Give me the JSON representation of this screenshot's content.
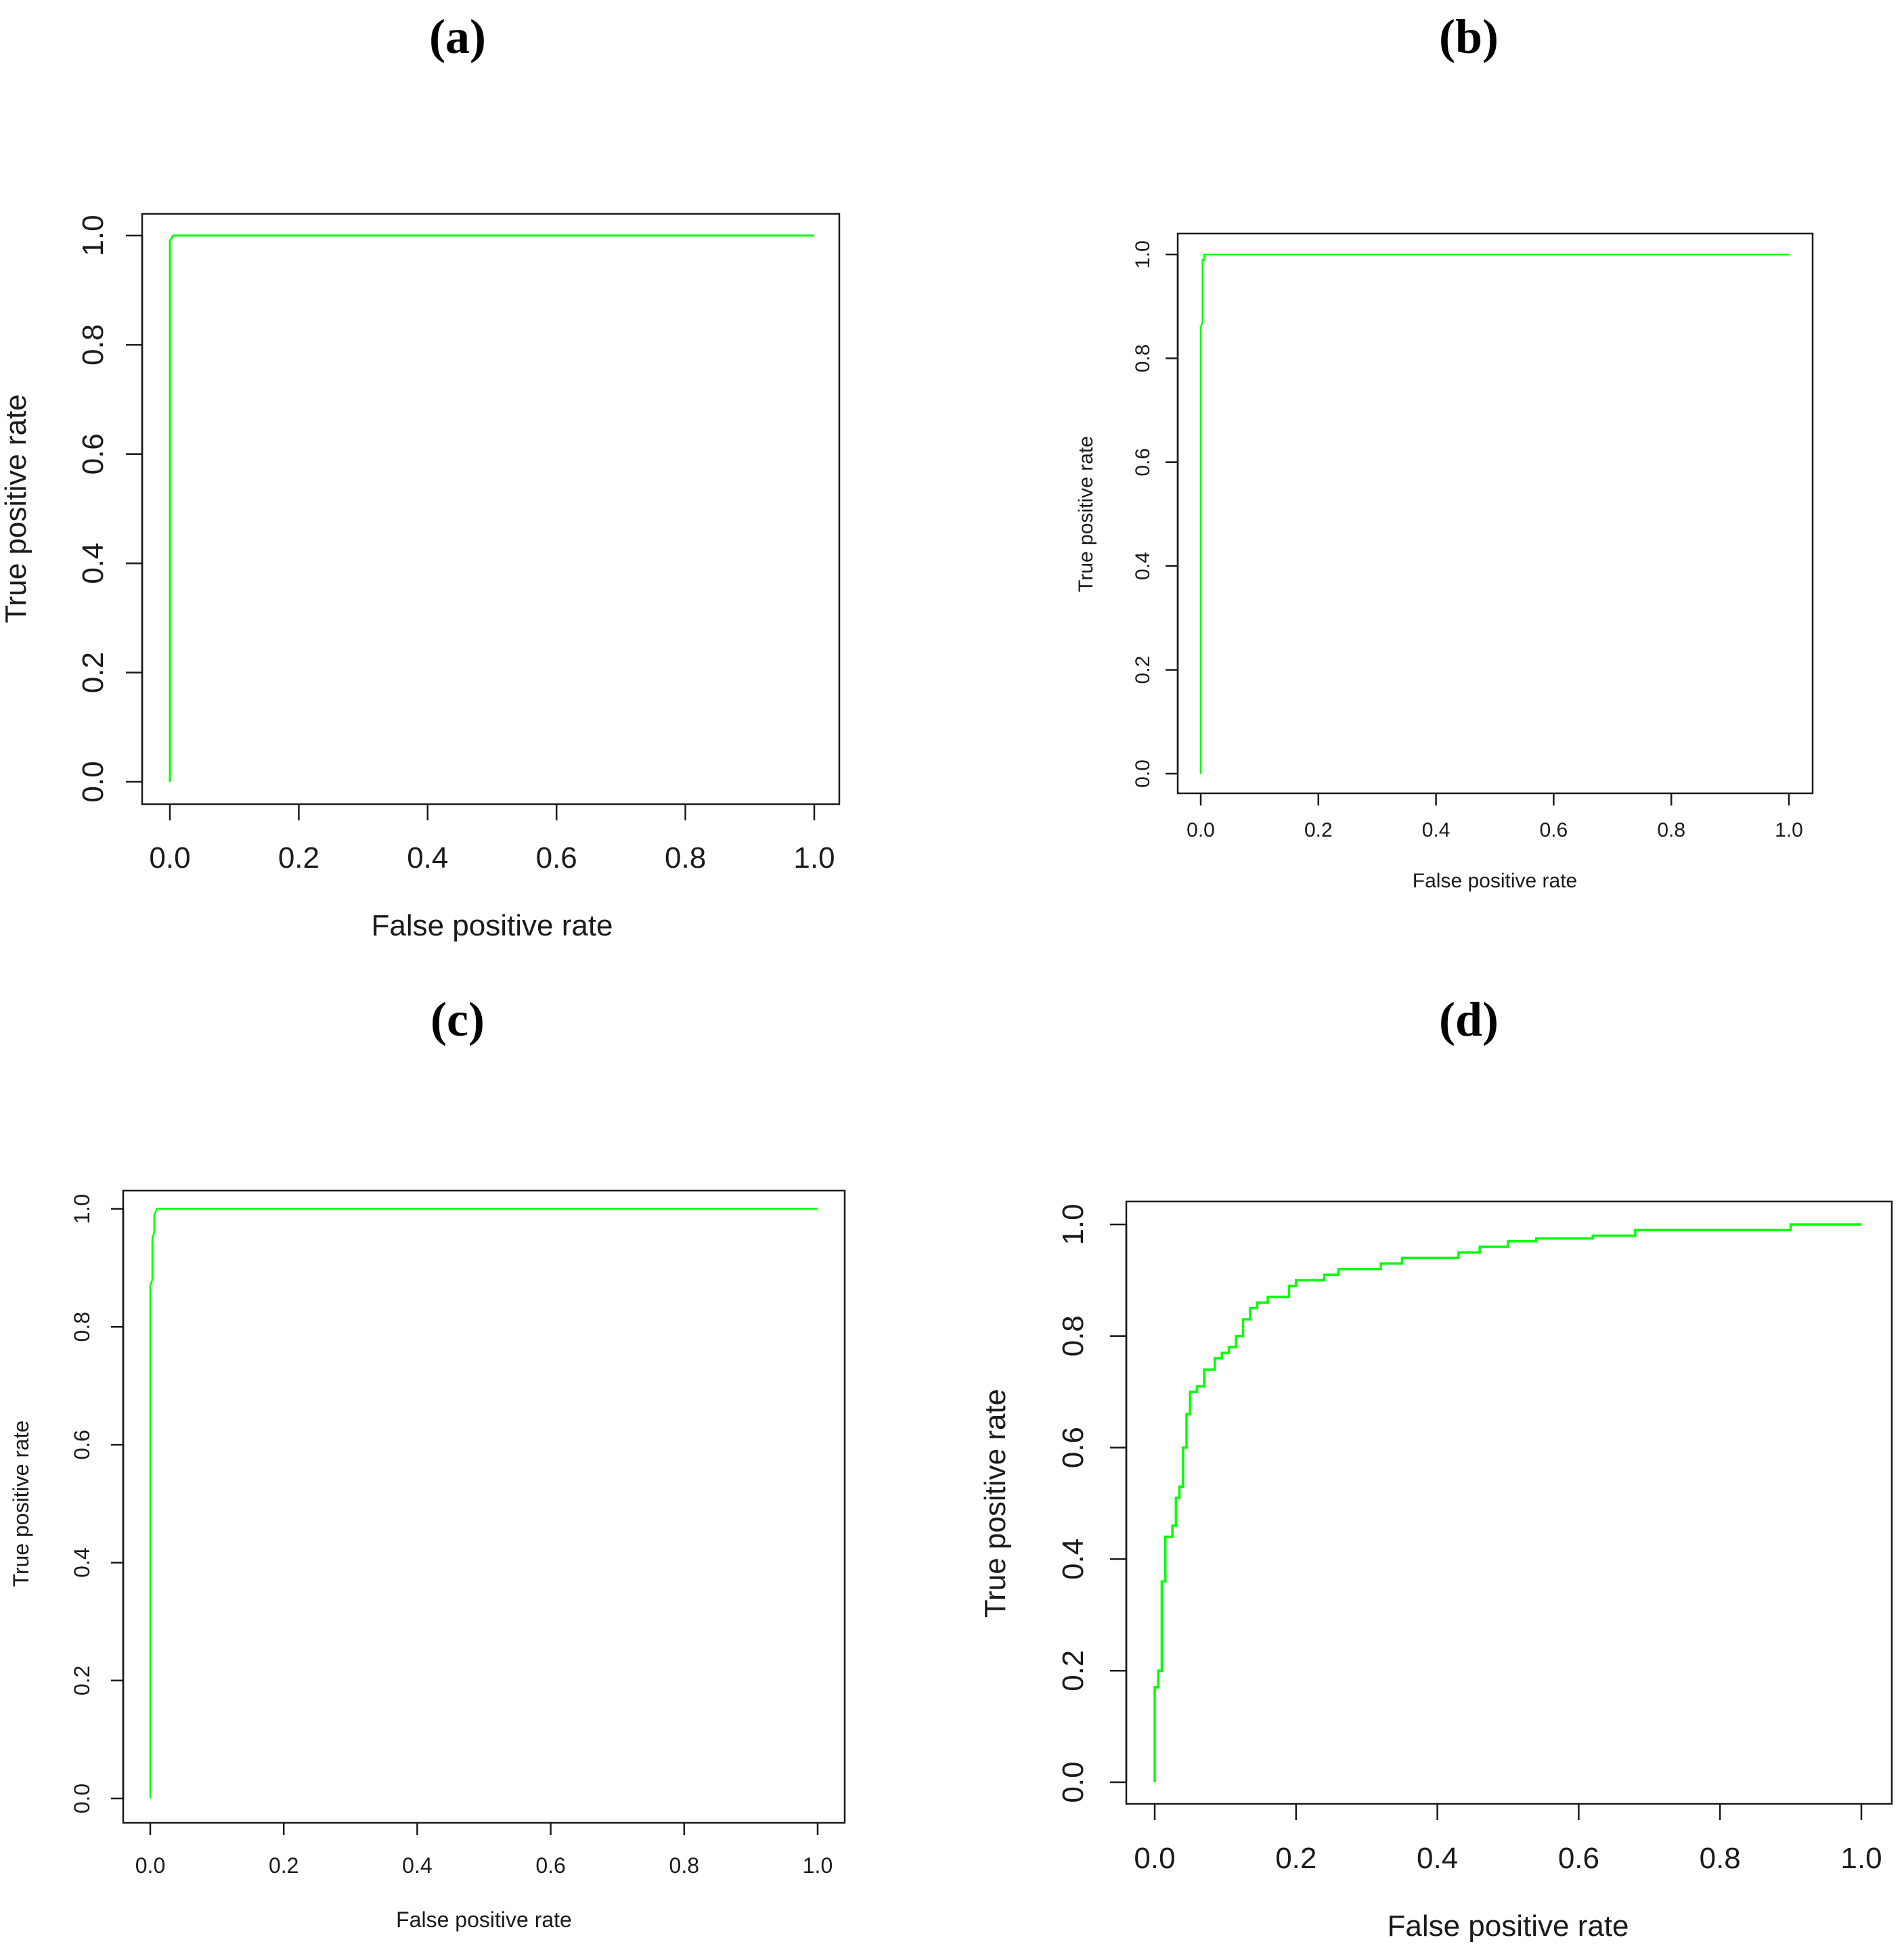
{
  "panel_labels": [
    "(a)",
    "(b)",
    "(c)",
    "(d)"
  ],
  "colors": {
    "curve": "#00ff00",
    "axis": "#1a1a1a",
    "background": "#ffffff"
  },
  "chart_data": [
    {
      "type": "line",
      "panel": "(a)",
      "xlabel": "False positive rate",
      "ylabel": "True positive rate",
      "xticks": [
        "0.0",
        "0.2",
        "0.4",
        "0.6",
        "0.8",
        "1.0"
      ],
      "yticks": [
        "0.0",
        "0.2",
        "0.4",
        "0.6",
        "0.8",
        "1.0"
      ],
      "xlim": [
        0,
        1
      ],
      "ylim": [
        0,
        1
      ],
      "grid": false,
      "series": [
        {
          "x": [
            0,
            0,
            0.005,
            1
          ],
          "y": [
            0,
            0.99,
            1.0,
            1.0
          ]
        }
      ]
    },
    {
      "type": "line",
      "panel": "(b)",
      "xlabel": "False positive rate",
      "ylabel": "True positive rate",
      "xticks": [
        "0.0",
        "0.2",
        "0.4",
        "0.6",
        "0.8",
        "1.0"
      ],
      "yticks": [
        "0.0",
        "0.2",
        "0.4",
        "0.6",
        "0.8",
        "1.0"
      ],
      "xlim": [
        0,
        1
      ],
      "ylim": [
        0,
        1
      ],
      "grid": false,
      "series": [
        {
          "x": [
            0,
            0,
            0.003,
            0.003,
            0.006,
            0.006,
            1
          ],
          "y": [
            0,
            0.86,
            0.87,
            0.99,
            0.99,
            1.0,
            1.0
          ]
        }
      ]
    },
    {
      "type": "line",
      "panel": "(c)",
      "xlabel": "False positive rate",
      "ylabel": "True positive rate",
      "xticks": [
        "0.0",
        "0.2",
        "0.4",
        "0.6",
        "0.8",
        "1.0"
      ],
      "yticks": [
        "0.0",
        "0.2",
        "0.4",
        "0.6",
        "0.8",
        "1.0"
      ],
      "xlim": [
        0,
        1
      ],
      "ylim": [
        0,
        1
      ],
      "grid": false,
      "series": [
        {
          "x": [
            0,
            0,
            0.003,
            0.003,
            0.006,
            0.006,
            0.01,
            1
          ],
          "y": [
            0,
            0.87,
            0.88,
            0.95,
            0.96,
            0.99,
            1.0,
            1.0
          ]
        }
      ]
    },
    {
      "type": "line",
      "panel": "(d)",
      "xlabel": "False positive rate",
      "ylabel": "True positive rate",
      "xticks": [
        "0.0",
        "0.2",
        "0.4",
        "0.6",
        "0.8",
        "1.0"
      ],
      "yticks": [
        "0.0",
        "0.2",
        "0.4",
        "0.6",
        "0.8",
        "1.0"
      ],
      "xlim": [
        0,
        1
      ],
      "ylim": [
        0,
        1
      ],
      "grid": false,
      "series": [
        {
          "x": [
            0,
            0,
            0.005,
            0.005,
            0.01,
            0.01,
            0.015,
            0.015,
            0.025,
            0.025,
            0.03,
            0.03,
            0.035,
            0.035,
            0.04,
            0.04,
            0.045,
            0.045,
            0.05,
            0.05,
            0.06,
            0.06,
            0.07,
            0.07,
            0.085,
            0.085,
            0.095,
            0.095,
            0.105,
            0.105,
            0.115,
            0.115,
            0.125,
            0.125,
            0.135,
            0.135,
            0.145,
            0.145,
            0.16,
            0.16,
            0.19,
            0.19,
            0.2,
            0.2,
            0.24,
            0.24,
            0.26,
            0.26,
            0.32,
            0.32,
            0.35,
            0.35,
            0.43,
            0.43,
            0.46,
            0.46,
            0.5,
            0.5,
            0.54,
            0.54,
            0.62,
            0.62,
            0.68,
            0.68,
            0.9,
            0.9,
            1.0
          ],
          "y": [
            0,
            0.17,
            0.17,
            0.2,
            0.2,
            0.36,
            0.36,
            0.44,
            0.44,
            0.46,
            0.46,
            0.51,
            0.51,
            0.53,
            0.53,
            0.6,
            0.6,
            0.66,
            0.66,
            0.7,
            0.7,
            0.71,
            0.71,
            0.74,
            0.74,
            0.76,
            0.76,
            0.77,
            0.77,
            0.78,
            0.78,
            0.8,
            0.8,
            0.83,
            0.83,
            0.85,
            0.85,
            0.86,
            0.86,
            0.87,
            0.87,
            0.89,
            0.89,
            0.9,
            0.9,
            0.91,
            0.91,
            0.92,
            0.92,
            0.93,
            0.93,
            0.94,
            0.94,
            0.95,
            0.95,
            0.96,
            0.96,
            0.97,
            0.97,
            0.975,
            0.975,
            0.98,
            0.98,
            0.99,
            0.99,
            1.0,
            1.0
          ]
        }
      ]
    }
  ]
}
